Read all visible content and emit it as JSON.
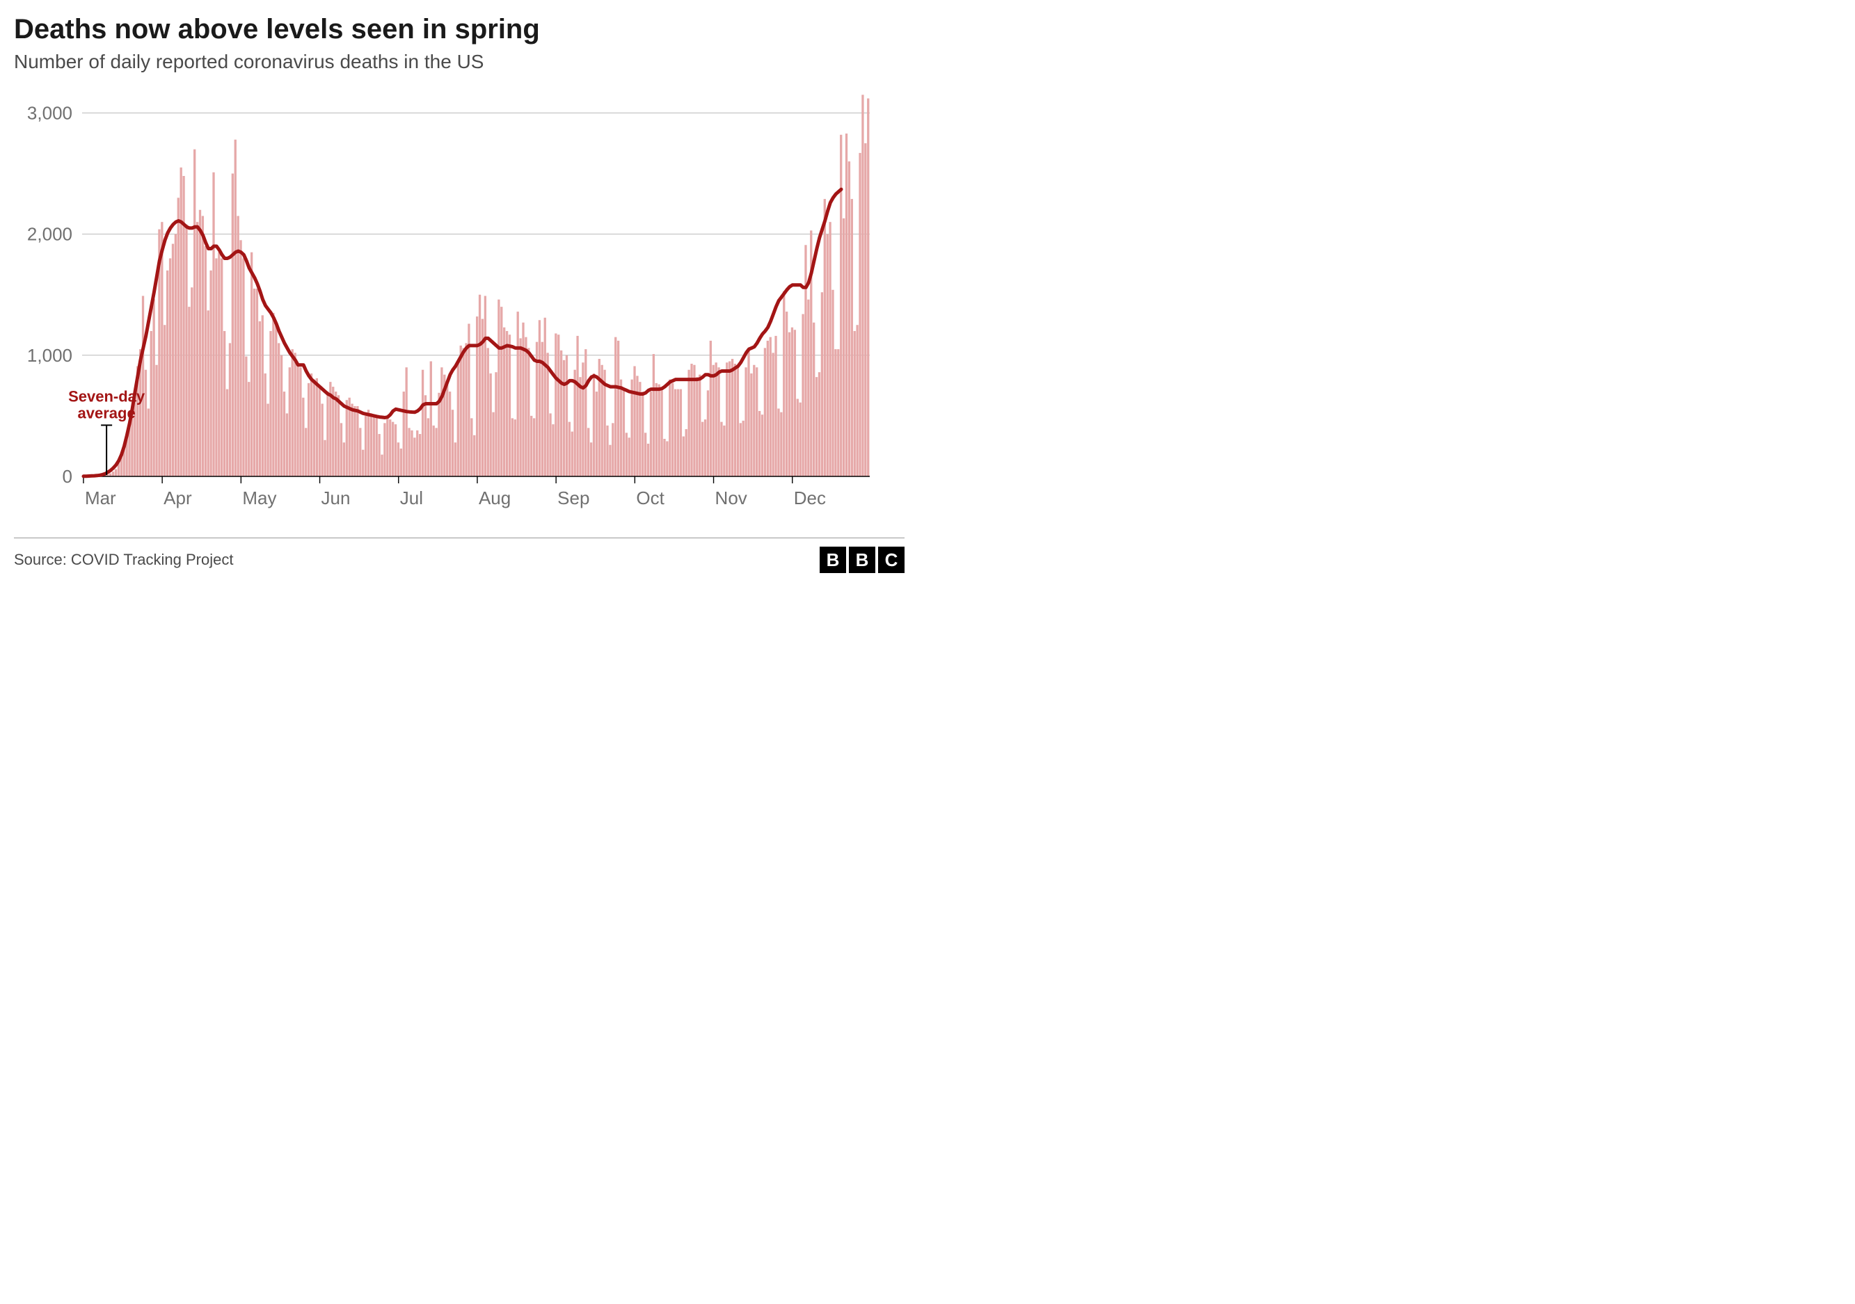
{
  "title": "Deaths now above levels seen in spring",
  "subtitle": "Number of daily reported coronavirus deaths in the US",
  "source": "Source: COVID Tracking Project",
  "logo": {
    "letters": [
      "B",
      "B",
      "C"
    ]
  },
  "annotation": {
    "text": "Seven-day average",
    "color": "#a31515",
    "fontsize": 22,
    "fontweight": "bold",
    "x_index": 9,
    "y_value": 480
  },
  "chart": {
    "type": "bar_and_line",
    "background_color": "#ffffff",
    "grid_color": "#b8b8b8",
    "axis_color": "#000000",
    "ylim": [
      0,
      3100
    ],
    "yticks": [
      0,
      1000,
      2000,
      3000
    ],
    "ytick_labels": [
      "0",
      "1,000",
      "2,000",
      "3,000"
    ],
    "ytick_fontsize": 26,
    "ytick_color": "#707070",
    "xticks_months": [
      "Mar",
      "Apr",
      "May",
      "Jun",
      "Jul",
      "Aug",
      "Sep",
      "Oct",
      "Nov",
      "Dec"
    ],
    "xtick_fontsize": 26,
    "xtick_color": "#707070",
    "bar_color": "#e6a8a8",
    "line_color": "#a31515",
    "line_width": 5,
    "bar_values": [
      0,
      2,
      1,
      3,
      4,
      3,
      5,
      8,
      12,
      18,
      25,
      40,
      60,
      110,
      160,
      260,
      320,
      450,
      560,
      700,
      910,
      1050,
      1490,
      880,
      560,
      1200,
      1465,
      920,
      2040,
      2100,
      1250,
      1700,
      1800,
      1920,
      2000,
      2300,
      2550,
      2480,
      2080,
      1400,
      1560,
      2700,
      2100,
      2200,
      2150,
      1900,
      1370,
      1700,
      2510,
      1800,
      1850,
      1800,
      1200,
      720,
      1100,
      2500,
      2780,
      2150,
      1950,
      1800,
      990,
      780,
      1850,
      1550,
      1550,
      1280,
      1330,
      850,
      600,
      1200,
      1350,
      1250,
      1100,
      1000,
      700,
      520,
      900,
      1050,
      1020,
      920,
      900,
      650,
      400,
      770,
      850,
      800,
      810,
      750,
      600,
      300,
      700,
      780,
      740,
      700,
      670,
      440,
      280,
      630,
      650,
      600,
      580,
      580,
      400,
      220,
      500,
      550,
      520,
      500,
      490,
      350,
      180,
      440,
      480,
      470,
      450,
      430,
      280,
      230,
      700,
      900,
      400,
      380,
      320,
      380,
      350,
      880,
      670,
      480,
      950,
      420,
      400,
      690,
      900,
      840,
      760,
      700,
      550,
      280,
      950,
      1080,
      1060,
      1100,
      1260,
      480,
      340,
      1320,
      1500,
      1300,
      1490,
      1060,
      850,
      530,
      860,
      1460,
      1400,
      1230,
      1200,
      1170,
      480,
      470,
      1360,
      1140,
      1270,
      1150,
      1060,
      500,
      480,
      1110,
      1290,
      1110,
      1310,
      1020,
      520,
      430,
      1180,
      1170,
      1040,
      960,
      1000,
      450,
      370,
      880,
      1160,
      820,
      940,
      1050,
      400,
      280,
      850,
      700,
      970,
      920,
      880,
      420,
      260,
      440,
      1150,
      1120,
      800,
      720,
      360,
      320,
      800,
      910,
      830,
      780,
      700,
      360,
      270,
      700,
      1010,
      770,
      760,
      710,
      310,
      290,
      800,
      770,
      720,
      720,
      720,
      330,
      390,
      880,
      930,
      920,
      820,
      840,
      450,
      470,
      710,
      1120,
      920,
      940,
      900,
      450,
      420,
      940,
      950,
      970,
      930,
      900,
      440,
      460,
      900,
      1040,
      850,
      920,
      900,
      540,
      510,
      1060,
      1120,
      1150,
      1020,
      1160,
      560,
      530,
      1530,
      1360,
      1190,
      1230,
      1210,
      640,
      610,
      1340,
      1910,
      1460,
      2030,
      1270,
      820,
      860,
      1520,
      2290,
      2000,
      2100,
      1540,
      1050,
      1050,
      2820,
      2130,
      2830,
      2600,
      2290,
      1200,
      1250,
      2670,
      3150,
      2750,
      3120
    ],
    "line_values": [
      1,
      2,
      3,
      4,
      5,
      7,
      10,
      15,
      22,
      35,
      50,
      70,
      95,
      130,
      180,
      250,
      340,
      440,
      560,
      700,
      830,
      960,
      1060,
      1160,
      1280,
      1400,
      1520,
      1650,
      1780,
      1870,
      1950,
      2010,
      2050,
      2080,
      2100,
      2110,
      2100,
      2080,
      2060,
      2050,
      2050,
      2060,
      2060,
      2030,
      1990,
      1930,
      1880,
      1880,
      1900,
      1900,
      1870,
      1830,
      1800,
      1800,
      1810,
      1830,
      1850,
      1860,
      1850,
      1830,
      1780,
      1720,
      1680,
      1640,
      1590,
      1530,
      1460,
      1410,
      1380,
      1350,
      1310,
      1260,
      1200,
      1150,
      1100,
      1060,
      1020,
      990,
      960,
      920,
      920,
      920,
      870,
      830,
      800,
      780,
      760,
      740,
      720,
      700,
      680,
      670,
      650,
      640,
      620,
      600,
      580,
      570,
      560,
      550,
      545,
      540,
      530,
      520,
      515,
      510,
      505,
      500,
      495,
      490,
      488,
      485,
      490,
      510,
      540,
      555,
      550,
      545,
      540,
      535,
      533,
      531,
      530,
      540,
      560,
      590,
      600,
      600,
      600,
      600,
      600,
      620,
      660,
      720,
      780,
      840,
      880,
      910,
      950,
      990,
      1030,
      1060,
      1080,
      1080,
      1080,
      1080,
      1090,
      1110,
      1140,
      1140,
      1120,
      1100,
      1080,
      1060,
      1060,
      1070,
      1080,
      1075,
      1070,
      1060,
      1060,
      1060,
      1050,
      1040,
      1020,
      990,
      960,
      950,
      950,
      940,
      920,
      900,
      870,
      840,
      810,
      790,
      770,
      760,
      770,
      790,
      790,
      780,
      760,
      740,
      730,
      750,
      790,
      820,
      830,
      820,
      800,
      780,
      760,
      750,
      740,
      740,
      740,
      735,
      730,
      720,
      710,
      700,
      695,
      690,
      685,
      680,
      680,
      690,
      710,
      720,
      720,
      720,
      720,
      725,
      740,
      760,
      780,
      790,
      800,
      800,
      800,
      800,
      800,
      800,
      800,
      800,
      800,
      805,
      820,
      840,
      840,
      830,
      830,
      840,
      860,
      870,
      870,
      870,
      870,
      880,
      895,
      910,
      940,
      980,
      1020,
      1050,
      1060,
      1070,
      1100,
      1140,
      1175,
      1200,
      1230,
      1280,
      1340,
      1400,
      1450,
      1480,
      1510,
      1540,
      1565,
      1580,
      1580,
      1580,
      1580,
      1560,
      1560,
      1600,
      1680,
      1780,
      1880,
      1970,
      2040,
      2110,
      2190,
      2260,
      2300,
      2330,
      2350,
      2370
    ]
  }
}
